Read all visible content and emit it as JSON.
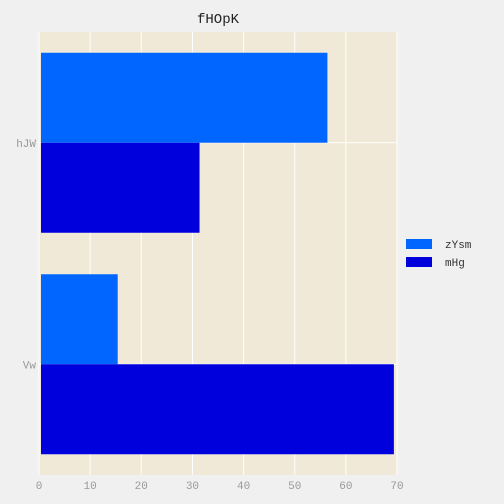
{
  "chart_data": {
    "type": "bar",
    "orientation": "horizontal",
    "title": "fHOpK",
    "xlabel": "",
    "ylabel": "",
    "categories": [
      "hJW",
      "Vw"
    ],
    "series": [
      {
        "name": "zYsm",
        "values": [
          56,
          15
        ],
        "color": "#0066ff"
      },
      {
        "name": "mHg",
        "values": [
          31,
          69
        ],
        "color": "#0000dd"
      }
    ],
    "xlim": [
      0,
      70
    ],
    "xticks": [
      0,
      10,
      20,
      30,
      40,
      50,
      60,
      70
    ],
    "grid": true,
    "legend_position": "right",
    "background_color": "#f0f0f0",
    "plot_background_color": "#f0e9d7",
    "grid_color": "#ffffff"
  }
}
